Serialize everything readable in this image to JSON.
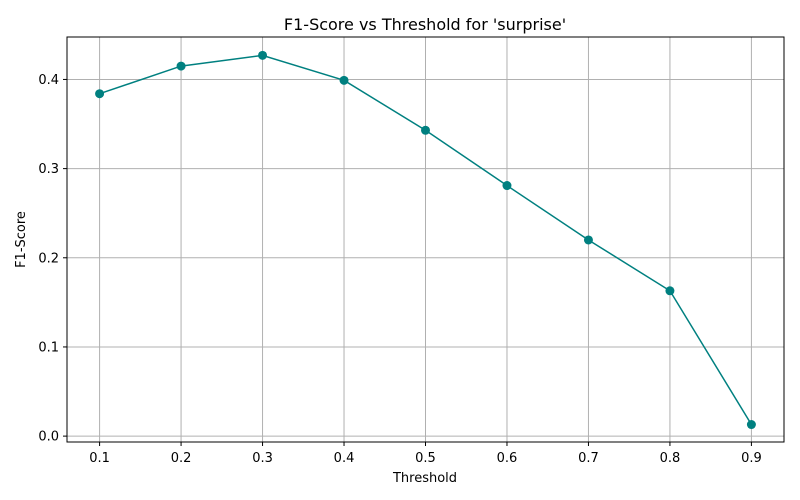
{
  "chart_data": {
    "type": "line",
    "title": "F1-Score vs Threshold for 'surprise'",
    "xlabel": "Threshold",
    "ylabel": "F1-Score",
    "x": [
      0.1,
      0.2,
      0.3,
      0.4,
      0.5,
      0.6,
      0.7,
      0.8,
      0.9
    ],
    "series": [
      {
        "values": [
          0.384,
          0.415,
          0.427,
          0.399,
          0.343,
          0.281,
          0.22,
          0.163,
          0.013
        ],
        "color": "#008080",
        "marker": "circle"
      }
    ],
    "xticks": [
      "0.1",
      "0.2",
      "0.3",
      "0.4",
      "0.5",
      "0.6",
      "0.7",
      "0.8",
      "0.9"
    ],
    "yticks": [
      "0.0",
      "0.1",
      "0.2",
      "0.3",
      "0.4"
    ],
    "xlim": [
      0.06,
      0.94
    ],
    "ylim": [
      -0.0066,
      0.4476
    ],
    "grid": true
  }
}
